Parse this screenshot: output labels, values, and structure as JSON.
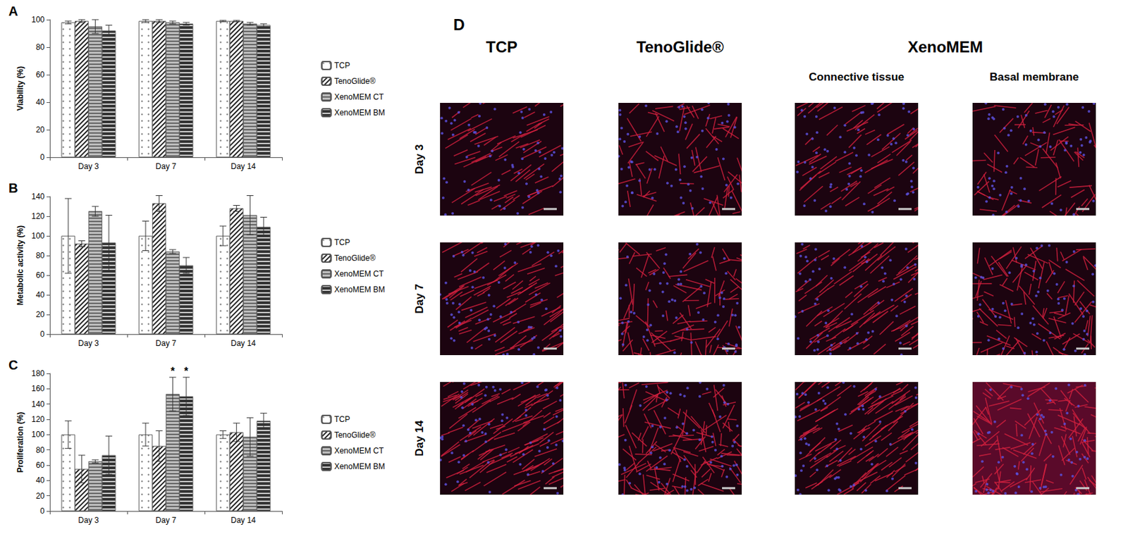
{
  "chart_data": [
    {
      "type": "bar",
      "panel": "A",
      "y_label": "Viability (%)",
      "categories": [
        "Day 3",
        "Day 7",
        "Day 14"
      ],
      "ylim": [
        0,
        100
      ],
      "yticks": [
        0,
        20,
        40,
        60,
        80,
        100
      ],
      "grid": false,
      "legend": "right",
      "series": [
        {
          "name": "TCP",
          "color": "#ffffff",
          "values": [
            98,
            99,
            99
          ],
          "errors": [
            1,
            1,
            0.5
          ]
        },
        {
          "name": "TenoGlide®",
          "color": "#ffffff",
          "values": [
            99,
            99,
            99
          ],
          "errors": [
            1,
            1,
            0.5
          ]
        },
        {
          "name": "XenoMEM CT",
          "color": "#bdbdbd",
          "values": [
            95,
            98,
            97
          ],
          "errors": [
            5,
            1,
            1
          ]
        },
        {
          "name": "XenoMEM BM",
          "color": "#333333",
          "values": [
            92,
            97,
            96
          ],
          "errors": [
            4,
            1,
            1
          ]
        }
      ]
    },
    {
      "type": "bar",
      "panel": "B",
      "y_label": "Metabolic activity (%)",
      "categories": [
        "Day 3",
        "Day 7",
        "Day 14"
      ],
      "ylim": [
        0,
        140
      ],
      "yticks": [
        0,
        20,
        40,
        60,
        80,
        100,
        120,
        140
      ],
      "grid": false,
      "legend": "right",
      "series": [
        {
          "name": "TCP",
          "color": "#ffffff",
          "values": [
            100,
            100,
            100
          ],
          "errors": [
            38,
            15,
            10
          ]
        },
        {
          "name": "TenoGlide®",
          "color": "#ffffff",
          "values": [
            92,
            133,
            128
          ],
          "errors": [
            3,
            8,
            3
          ]
        },
        {
          "name": "XenoMEM CT",
          "color": "#bdbdbd",
          "values": [
            125,
            84,
            121
          ],
          "errors": [
            5,
            2,
            20
          ]
        },
        {
          "name": "XenoMEM BM",
          "color": "#333333",
          "values": [
            93,
            70,
            109
          ],
          "errors": [
            28,
            8,
            10
          ]
        }
      ]
    },
    {
      "type": "bar",
      "panel": "C",
      "y_label": "Proliferation (%)",
      "categories": [
        "Day 3",
        "Day 7",
        "Day 14"
      ],
      "ylim": [
        0,
        180
      ],
      "yticks": [
        0,
        20,
        40,
        60,
        80,
        100,
        120,
        140,
        160,
        180
      ],
      "grid": false,
      "legend": "right",
      "series": [
        {
          "name": "TCP",
          "color": "#ffffff",
          "values": [
            100,
            100,
            100
          ],
          "errors": [
            18,
            15,
            5
          ]
        },
        {
          "name": "TenoGlide®",
          "color": "#ffffff",
          "values": [
            55,
            85,
            103
          ],
          "errors": [
            18,
            20,
            12
          ]
        },
        {
          "name": "XenoMEM CT",
          "color": "#bdbdbd",
          "values": [
            65,
            153,
            97
          ],
          "errors": [
            2,
            22,
            25
          ]
        },
        {
          "name": "XenoMEM BM",
          "color": "#333333",
          "values": [
            73,
            150,
            118
          ],
          "errors": [
            25,
            25,
            10
          ]
        }
      ],
      "annotations": [
        {
          "category": "Day 7",
          "series": "XenoMEM CT",
          "text": "*"
        },
        {
          "category": "Day 7",
          "series": "XenoMEM BM",
          "text": "*"
        }
      ]
    }
  ],
  "image_panel": {
    "panel": "D",
    "columns": [
      {
        "head": "TCP"
      },
      {
        "head": "TenoGlide®"
      },
      {
        "group": "XenoMEM",
        "head": "Connective tissue"
      },
      {
        "group": "XenoMEM",
        "head": "Basal membrane"
      }
    ],
    "rows": [
      "Day 3",
      "Day 7",
      "Day 14"
    ]
  }
}
